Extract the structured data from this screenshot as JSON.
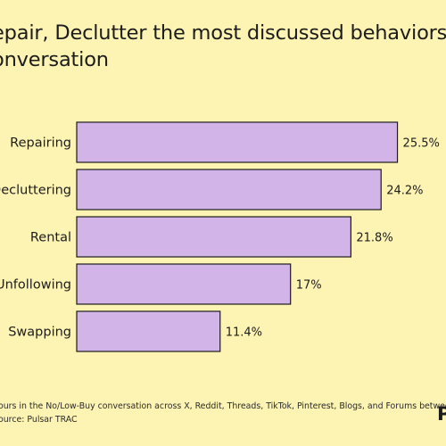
{
  "title": {
    "line1": "epair, Declutter the most discussed behaviors i",
    "line2": "onversation"
  },
  "chart_data": {
    "type": "bar",
    "orientation": "horizontal",
    "categories": [
      "Repairing",
      "Decluttering",
      "Rental",
      "Unfollowing",
      "Swapping"
    ],
    "values": [
      25.5,
      24.2,
      21.8,
      17,
      11.4
    ],
    "value_labels": [
      "25.5%",
      "24.2%",
      "21.8%",
      "17%",
      "11.4%"
    ],
    "value_unit": "%",
    "bar_color": "#d2b4e9",
    "bar_stroke": "#1c1c1c",
    "grid": false,
    "legend": "none"
  },
  "footnote": {
    "line1": "ours in the No/Low-Buy conversation across X, Reddit, Threads, TikTok, Pinterest, Blogs, and Forums between",
    "line2": "ource: Pulsar TRAC"
  },
  "logo": {
    "text": "P"
  }
}
